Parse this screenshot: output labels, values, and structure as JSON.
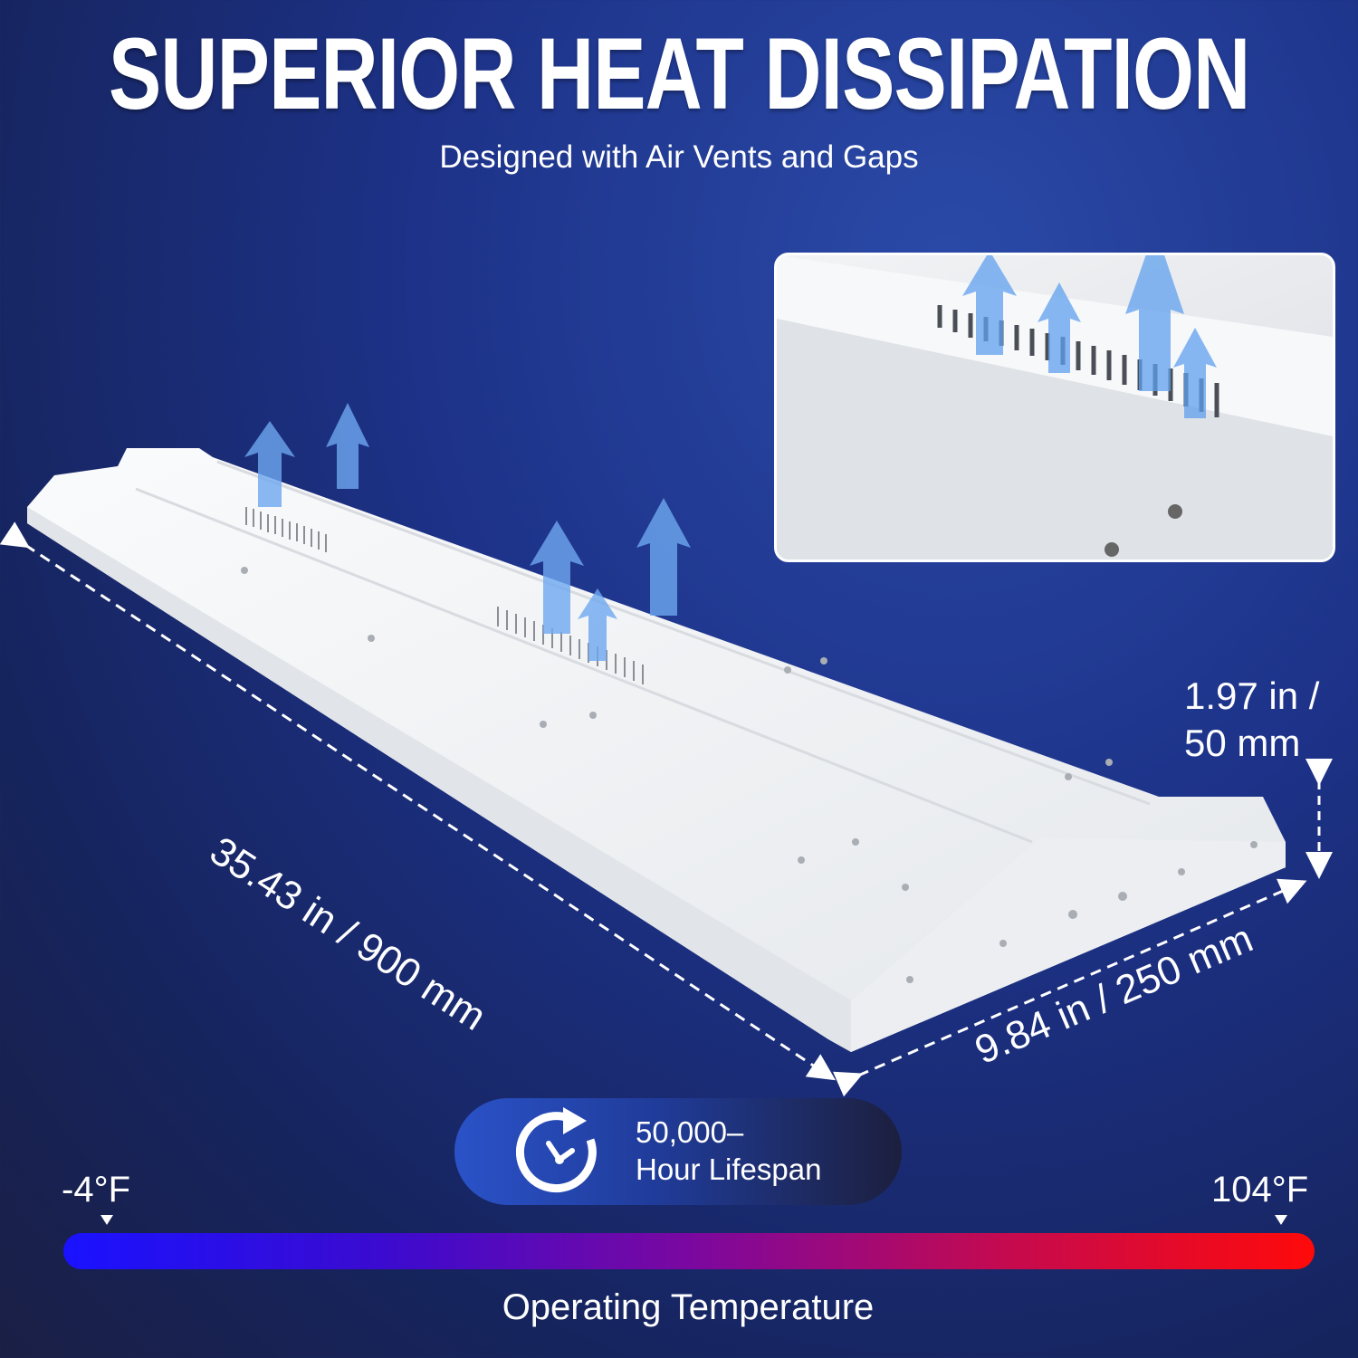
{
  "header": {
    "title": "SUPERIOR HEAT DISSIPATION",
    "subtitle": "Designed with Air Vents and Gaps"
  },
  "dimensions": {
    "length": "35.43 in / 900 mm",
    "width": "9.84 in / 250 mm",
    "height_line1": "1.97 in /",
    "height_line2": "50 mm"
  },
  "lifespan": {
    "icon": "clock-cycle-icon",
    "line1": "50,000–",
    "line2": "Hour Lifespan"
  },
  "temperature": {
    "min": "-4°F",
    "max": "104°F",
    "label": "Operating Temperature",
    "colors": [
      "#1a12ff",
      "#7a08a0",
      "#ff0a0a"
    ]
  }
}
